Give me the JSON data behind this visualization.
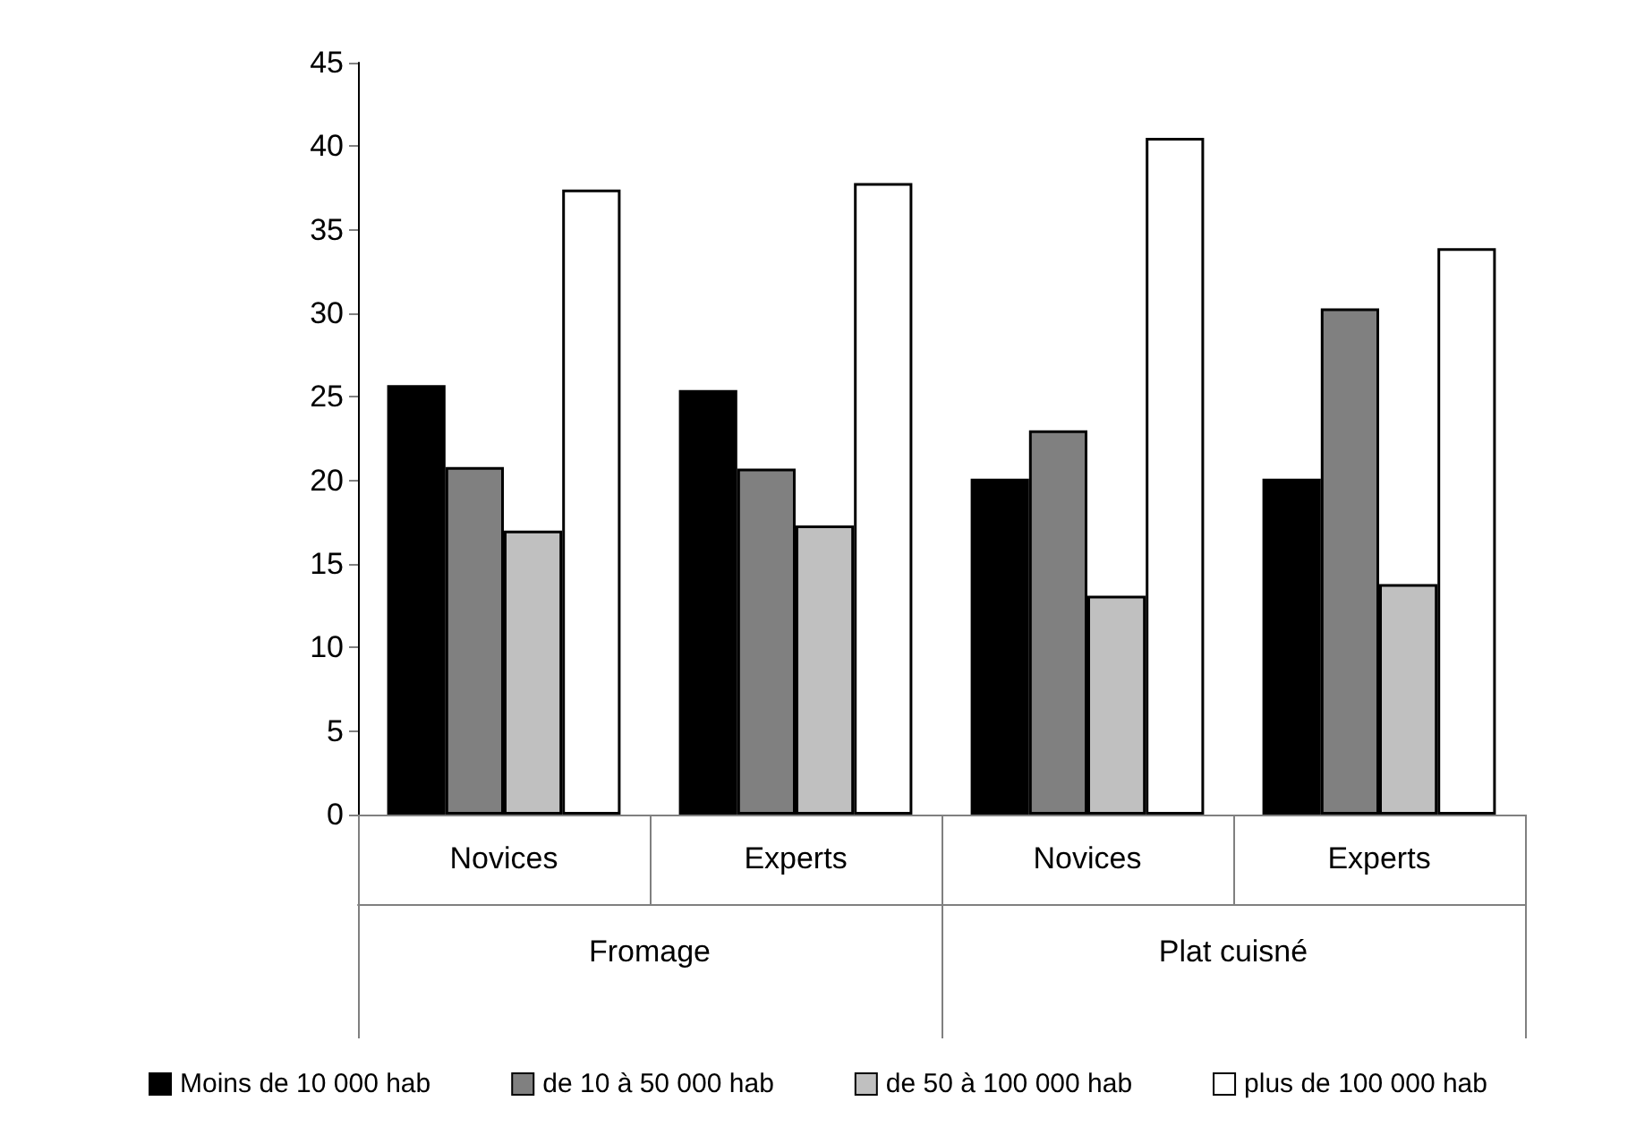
{
  "chart_data": {
    "type": "bar",
    "categories": [
      "Novices",
      "Experts",
      "Novices",
      "Experts"
    ],
    "annotations": [
      "Fromage",
      "Plat cuisné"
    ],
    "series": [
      {
        "name": "Moins de 10 000 hab",
        "color": "#000000",
        "values": [
          25.7,
          25.4,
          20.1,
          20.1
        ]
      },
      {
        "name": "de 10 à 50 000 hab",
        "color": "#808080",
        "values": [
          20.8,
          20.7,
          23.0,
          30.3
        ]
      },
      {
        "name": "de 50 à 100 000 hab",
        "color": "#c0c0c0",
        "values": [
          17.0,
          17.3,
          13.1,
          13.8
        ]
      },
      {
        "name": "plus de 100 000 hab",
        "color": "#ffffff",
        "values": [
          37.4,
          37.8,
          40.5,
          33.9
        ]
      }
    ],
    "ylim": [
      0,
      45
    ],
    "yticks": [
      0,
      5,
      10,
      15,
      20,
      25,
      30,
      35,
      40,
      45
    ],
    "grid": false,
    "legend": "bottom"
  }
}
